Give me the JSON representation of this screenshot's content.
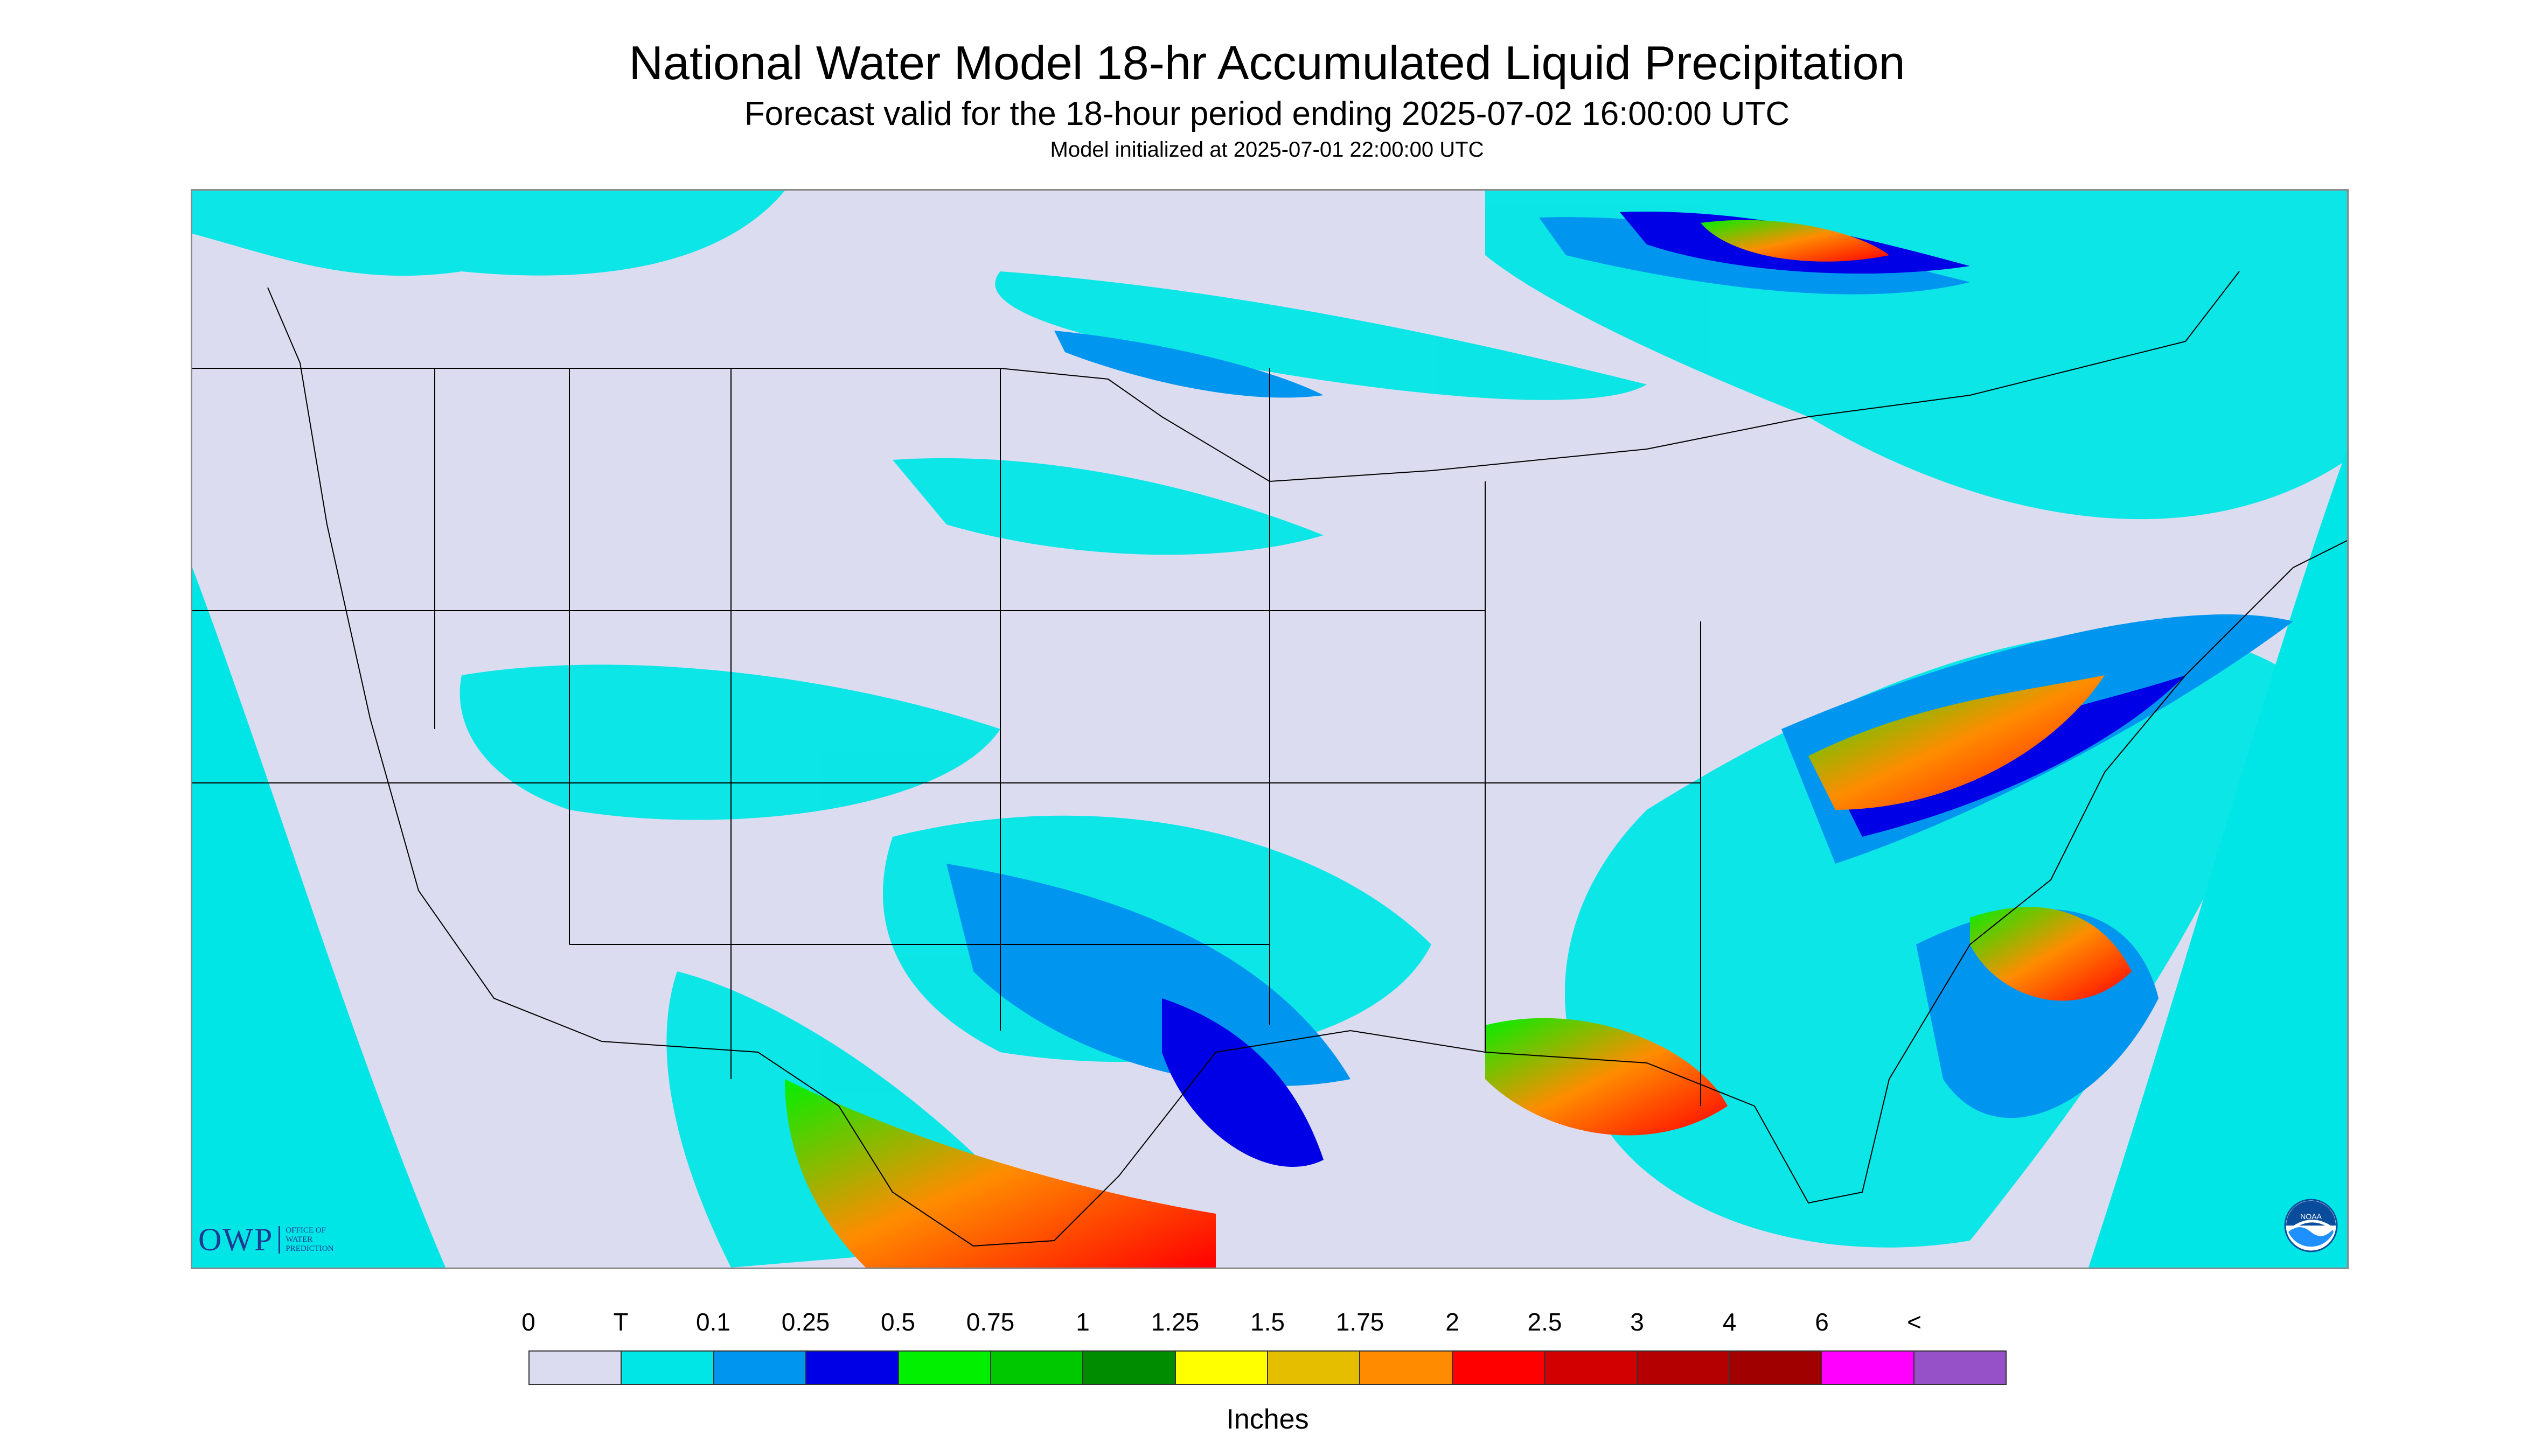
{
  "title": "National Water Model 18-hr Accumulated Liquid Precipitation",
  "subtitle": "Forecast valid for the 18-hour period ending 2025-07-02 16:00:00 UTC",
  "init_line": "Model initialized at 2025-07-01 22:00:00 UTC",
  "logos": {
    "owp": "OWP",
    "owp_sub": [
      "OFFICE OF",
      "WATER",
      "PREDICTION"
    ],
    "noaa": "NOAA"
  },
  "legend": {
    "ticks": [
      "0",
      "T",
      "0.1",
      "0.25",
      "0.5",
      "0.75",
      "1",
      "1.25",
      "1.5",
      "1.75",
      "2",
      "2.5",
      "3",
      "4",
      "6",
      "<"
    ],
    "colors": [
      "#dcdcf0",
      "#00e6e6",
      "#0096f0",
      "#0000e6",
      "#00f000",
      "#00c800",
      "#008c00",
      "#ffff00",
      "#e6be00",
      "#ff8c00",
      "#ff0000",
      "#d20000",
      "#b40000",
      "#a00000",
      "#ff00ff",
      "#9650c8"
    ],
    "units": "Inches"
  },
  "map": {
    "background_color": "#dcdcf0",
    "offdomain_color": "#00e6e6",
    "boundary_color": "#000000"
  }
}
